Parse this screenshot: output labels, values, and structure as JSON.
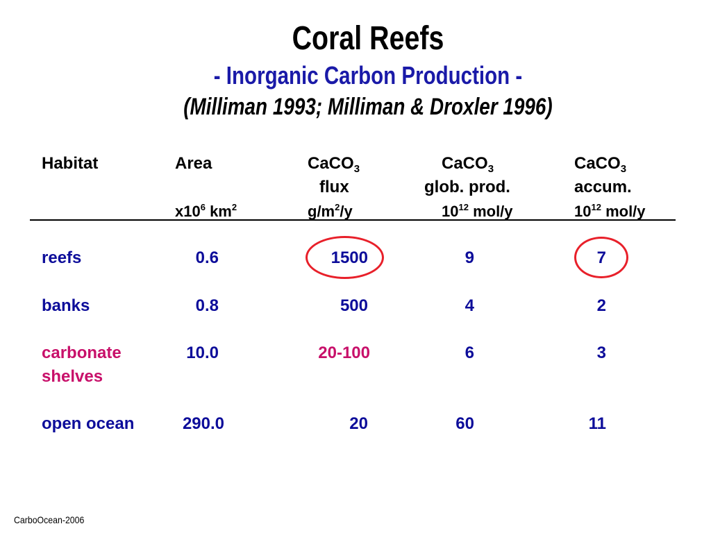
{
  "title": "Coral Reefs",
  "subtitle": "- Inorganic Carbon Production -",
  "citation": "(Milliman 1993; Milliman & Droxler 1996)",
  "headers": {
    "habitat": "Habitat",
    "area": "Area",
    "flux_caco": "CaCO",
    "flux_sub": "3",
    "flux_label": "flux",
    "prod_caco": "CaCO",
    "prod_sub": "3",
    "prod_label": "glob. prod.",
    "accum_caco": "CaCO",
    "accum_sub": "3",
    "accum_label": "accum."
  },
  "units": {
    "area_a": "x10",
    "area_sup1": "6",
    "area_b": " km",
    "area_sup2": "2",
    "flux_a": "g/m",
    "flux_sup": "2",
    "flux_b": "/y",
    "prod_a": "10",
    "prod_sup": "12",
    "prod_b": " mol/y",
    "accum_a": "10",
    "accum_sup": "12",
    "accum_b": " mol/y"
  },
  "rows": [
    {
      "habitat": "reefs",
      "habitat_line2": "",
      "area": "0.6",
      "flux": "1500",
      "prod": "9",
      "accum": "7",
      "color": "#0d0d9a"
    },
    {
      "habitat": "banks",
      "habitat_line2": "",
      "area": "0.8",
      "flux": "500",
      "prod": "4",
      "accum": "2",
      "color": "#0d0d9a"
    },
    {
      "habitat": "carbonate",
      "habitat_line2": "shelves",
      "area": "10.0",
      "flux": "20-100",
      "prod": "6",
      "accum": "3",
      "color": "#c8106a"
    },
    {
      "habitat": "open ocean",
      "habitat_line2": "",
      "area": "290.0",
      "flux": "20",
      "prod": "60",
      "accum": "11",
      "color": "#0d0d9a"
    }
  ],
  "highlight_color": "#e8202a",
  "footer": "CarboOcean-2006"
}
